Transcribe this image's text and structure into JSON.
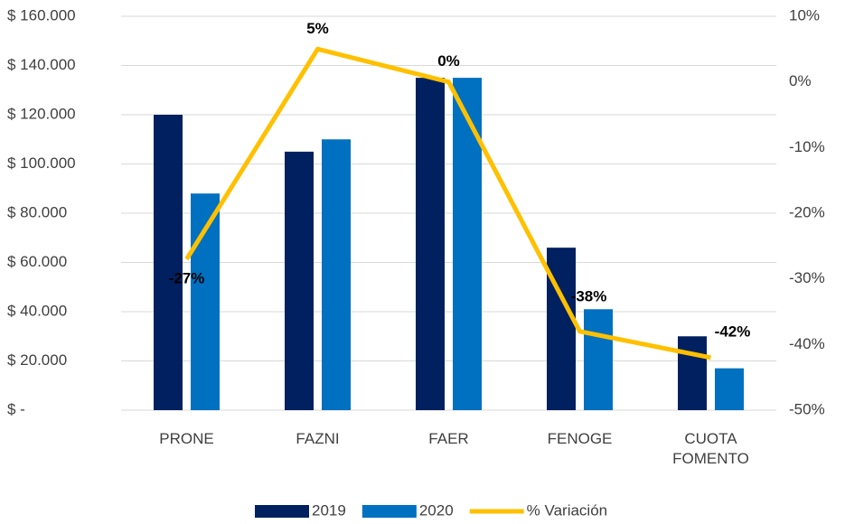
{
  "chart_data": {
    "type": "bar",
    "categories": [
      "PRONE",
      "FAZNI",
      "FAER",
      "FENOGE",
      "CUOTA FOMENTO"
    ],
    "series": [
      {
        "name": "2019",
        "color": "#002060",
        "values": [
          120000,
          105000,
          135000,
          66000,
          30000
        ]
      },
      {
        "name": "2020",
        "color": "#0070C0",
        "values": [
          88000,
          110000,
          135000,
          41000,
          17000
        ]
      },
      {
        "name": "% Variación",
        "color": "#FFC000",
        "type": "line",
        "axis": "y2",
        "values": [
          -27,
          5,
          0,
          -38,
          -42
        ],
        "value_labels": [
          "-27%",
          "5%",
          "0%",
          "-38%",
          "-42%"
        ]
      }
    ],
    "ylim": [
      0,
      160000
    ],
    "yticks": [
      {
        "value": 0,
        "label": "$ -"
      },
      {
        "value": 20000,
        "label": "$ 20.000"
      },
      {
        "value": 40000,
        "label": "$ 40.000"
      },
      {
        "value": 60000,
        "label": "$ 60.000"
      },
      {
        "value": 80000,
        "label": "$ 80.000"
      },
      {
        "value": 100000,
        "label": "$ 100.000"
      },
      {
        "value": 120000,
        "label": "$ 120.000"
      },
      {
        "value": 140000,
        "label": "$ 140.000"
      },
      {
        "value": 160000,
        "label": "$ 160.000"
      }
    ],
    "y2lim": [
      -50,
      10
    ],
    "y2ticks": [
      {
        "value": -50,
        "label": "-50%"
      },
      {
        "value": -40,
        "label": "-40%"
      },
      {
        "value": -30,
        "label": "-30%"
      },
      {
        "value": -20,
        "label": "-20%"
      },
      {
        "value": -10,
        "label": "-10%"
      },
      {
        "value": 0,
        "label": "0%"
      },
      {
        "value": 10,
        "label": "10%"
      }
    ],
    "grid": true,
    "legend": "bottom"
  }
}
